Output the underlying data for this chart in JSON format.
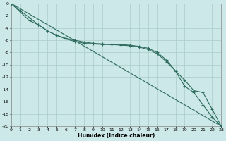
{
  "xlabel": "Humidex (Indice chaleur)",
  "ylabel": "",
  "background_color": "#cce8e8",
  "grid_color": "#aacccc",
  "line_color": "#2d6b5e",
  "xlim": [
    0,
    23
  ],
  "ylim": [
    -20,
    0
  ],
  "xticks": [
    0,
    1,
    2,
    3,
    4,
    5,
    6,
    7,
    8,
    9,
    10,
    11,
    12,
    13,
    14,
    15,
    16,
    17,
    18,
    19,
    20,
    21,
    22,
    23
  ],
  "yticks": [
    0,
    -2,
    -4,
    -6,
    -8,
    -10,
    -12,
    -14,
    -16,
    -18,
    -20
  ],
  "line1_x": [
    0,
    23
  ],
  "line1_y": [
    0,
    -20
  ],
  "line2_x": [
    0,
    1,
    2,
    3,
    4,
    5,
    6,
    7,
    8,
    9,
    10,
    11,
    12,
    13,
    14,
    15,
    16,
    17,
    18,
    19,
    20,
    21,
    22,
    23
  ],
  "line2_y": [
    0,
    -1.2,
    -2.3,
    -3.5,
    -4.5,
    -5.2,
    -5.8,
    -6.2,
    -6.5,
    -6.6,
    -6.7,
    -6.7,
    -6.7,
    -6.8,
    -7.0,
    -7.3,
    -8.0,
    -9.2,
    -11.0,
    -13.5,
    -14.5,
    -16.5,
    -18.5,
    -20.0
  ],
  "line3_x": [
    0,
    2,
    3,
    4,
    5,
    6,
    7,
    8,
    9,
    10,
    11,
    12,
    13,
    14,
    15,
    16,
    17,
    18,
    19,
    20,
    21,
    22,
    23
  ],
  "line3_y": [
    0,
    -2.8,
    -3.5,
    -4.5,
    -5.2,
    -5.7,
    -6.0,
    -6.3,
    -6.5,
    -6.6,
    -6.7,
    -6.8,
    -6.9,
    -7.1,
    -7.5,
    -8.2,
    -9.5,
    -11.0,
    -12.5,
    -14.2,
    -14.5,
    -17.2,
    -20.0
  ]
}
